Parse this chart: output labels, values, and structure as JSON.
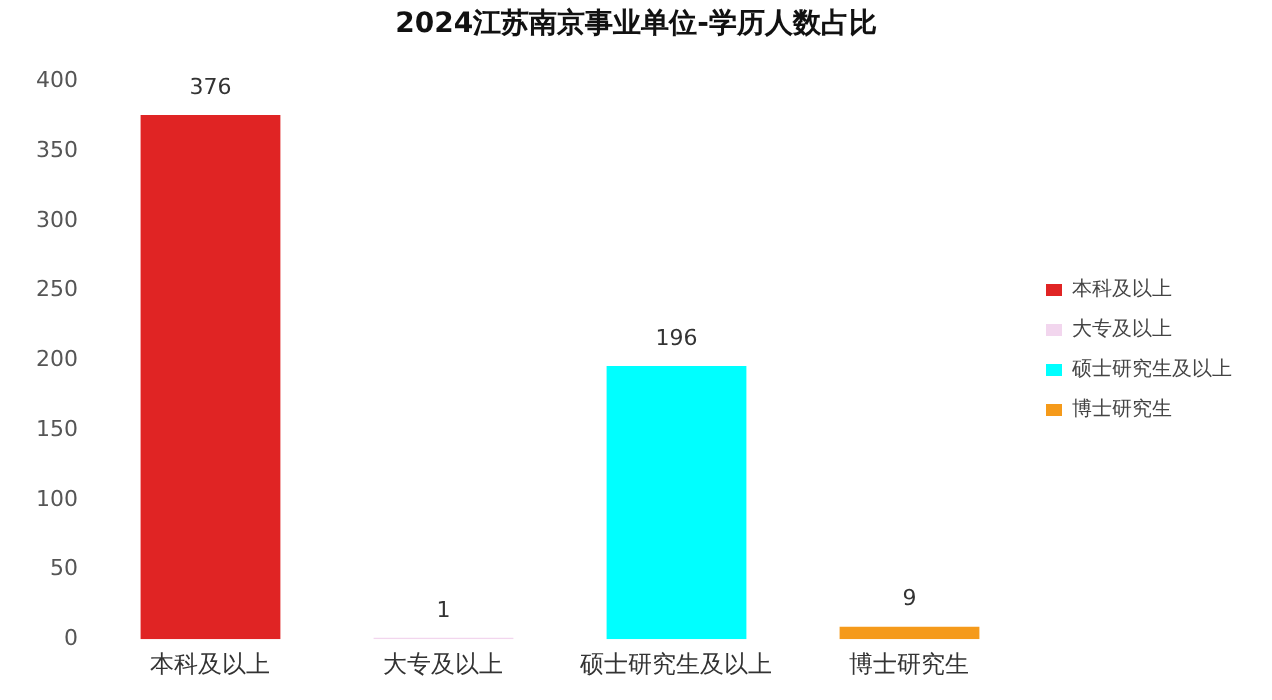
{
  "chart_data": {
    "type": "bar",
    "title": "2024江苏南京事业单位-学历人数占比",
    "categories": [
      "本科及以上",
      "大专及以上",
      "硕士研究生及以上",
      "博士研究生"
    ],
    "series": [
      {
        "name": "本科及以上",
        "color": "#e02424",
        "values": [
          376,
          null,
          null,
          null
        ]
      },
      {
        "name": "大专及以上",
        "color": "#f2d6ee",
        "values": [
          null,
          1,
          null,
          null
        ]
      },
      {
        "name": "硕士研究生及以上",
        "color": "#00ffff",
        "values": [
          null,
          null,
          196,
          null
        ]
      },
      {
        "name": "博士研究生",
        "color": "#f59a1a",
        "values": [
          null,
          null,
          null,
          9
        ]
      }
    ],
    "ylim": [
      0,
      400
    ],
    "yticks": [
      0,
      50,
      100,
      150,
      200,
      250,
      300,
      350,
      400
    ],
    "grid": false,
    "legend": "right",
    "data_labels": true
  }
}
